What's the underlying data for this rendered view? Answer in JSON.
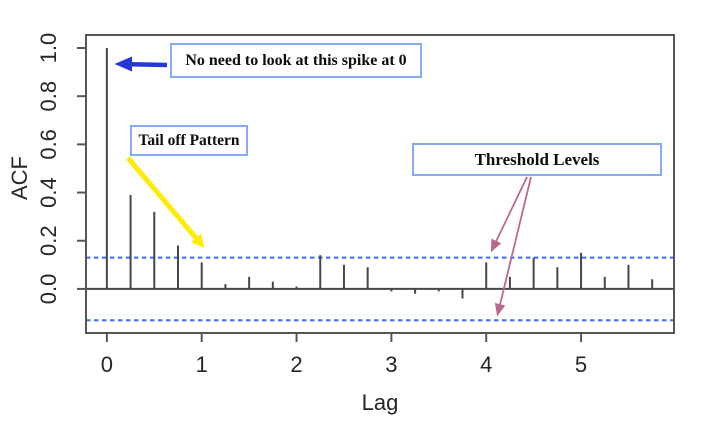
{
  "figure": {
    "description": "R autocorrelation function plot with teaching annotations",
    "background_color": "#ffffff"
  },
  "chart_data": {
    "type": "bar",
    "title": "",
    "xlabel": "Lag",
    "ylabel": "ACF",
    "x": [
      0,
      0.25,
      0.5,
      0.75,
      1,
      1.25,
      1.5,
      1.75,
      2,
      2.25,
      2.5,
      2.75,
      3,
      3.25,
      3.5,
      3.75,
      4,
      4.25,
      4.5,
      4.75,
      5,
      5.25,
      5.5,
      5.75
    ],
    "values": [
      1.0,
      0.39,
      0.32,
      0.18,
      0.11,
      0.02,
      0.05,
      0.03,
      0.01,
      0.14,
      0.1,
      0.09,
      -0.01,
      -0.02,
      -0.01,
      -0.04,
      0.11,
      0.05,
      0.13,
      0.09,
      0.15,
      0.05,
      0.1,
      0.04
    ],
    "threshold_upper": 0.13,
    "threshold_lower": -0.13,
    "x_ticks": [
      0,
      1,
      2,
      3,
      4,
      5
    ],
    "y_ticks": [
      0.0,
      0.2,
      0.4,
      0.6,
      0.8,
      1.0
    ],
    "xlim": [
      -0.22,
      5.98
    ],
    "ylim": [
      -0.183,
      1.054
    ],
    "grid": false,
    "legend": "none",
    "colors": {
      "spike": "#474747",
      "axis": "#565656",
      "threshold_dash": "#3b6df2",
      "tick_label": "#262626"
    }
  },
  "annotations": {
    "box_border_color": "#86aaf6",
    "spike_note": {
      "label": "No need to look at this spike at 0",
      "arrow_color": "#2636dd"
    },
    "tail_off": {
      "label": "Tail off Pattern",
      "arrow_color": "#ffec00"
    },
    "threshold": {
      "label": "Threshold Levels",
      "arrow_color": "#bb6a8f"
    }
  }
}
